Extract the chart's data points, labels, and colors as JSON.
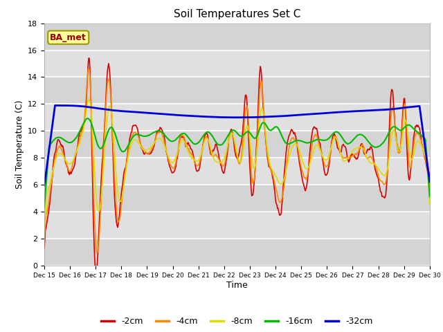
{
  "title": "Soil Temperatures Set C",
  "xlabel": "Time",
  "ylabel": "Soil Temperature (C)",
  "ylim": [
    0,
    18
  ],
  "yticks": [
    0,
    2,
    4,
    6,
    8,
    10,
    12,
    14,
    16,
    18
  ],
  "annotation": "BA_met",
  "plot_bg_color": "#e0e0e0",
  "fig_bg_color": "#ffffff",
  "legend_entries": [
    "-2cm",
    "-4cm",
    "-8cm",
    "-16cm",
    "-32cm"
  ],
  "legend_colors": [
    "#dd0000",
    "#ff8800",
    "#dddd00",
    "#00bb00",
    "#0000dd"
  ],
  "xtick_labels": [
    "Dec 15",
    "Dec 16",
    "Dec 17",
    "Dec 18",
    "Dec 19",
    "Dec 20",
    "Dec 21",
    "Dec 22",
    "Dec 23",
    "Dec 24",
    "Dec 25",
    "Dec 26",
    "Dec 27",
    "Dec 28",
    "Dec 29",
    "Dec 30"
  ],
  "line_colors": [
    "#dd0000",
    "#ff8800",
    "#dddd00",
    "#00bb00",
    "#0000dd"
  ],
  "line_widths": [
    1.2,
    1.2,
    1.2,
    1.5,
    2.0
  ]
}
